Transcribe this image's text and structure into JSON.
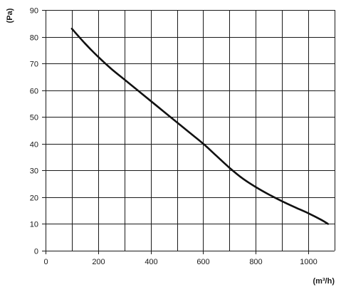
{
  "chart_data": {
    "type": "line",
    "title": "",
    "xlabel": "(m³/h)",
    "ylabel": "(Pa)",
    "xlim": [
      0,
      1100
    ],
    "ylim": [
      0,
      90
    ],
    "x_ticks": [
      0,
      200,
      400,
      600,
      800,
      1000
    ],
    "x_tick_labels": [
      "0",
      "200",
      "400",
      "600",
      "800",
      "1000"
    ],
    "x_grid_step": 100,
    "y_ticks": [
      0,
      10,
      20,
      30,
      40,
      50,
      60,
      70,
      80,
      90
    ],
    "y_tick_labels": [
      "0",
      "10",
      "20",
      "30",
      "40",
      "50",
      "60",
      "70",
      "80",
      "90"
    ],
    "grid": true,
    "legend": "none",
    "series": [
      {
        "color": "#111111",
        "x": [
          100,
          150,
          200,
          250,
          300,
          350,
          400,
          450,
          500,
          550,
          600,
          650,
          700,
          750,
          800,
          850,
          900,
          950,
          1000,
          1050,
          1075
        ],
        "y": [
          83,
          77.5,
          72.5,
          68,
          64,
          60,
          56,
          52,
          48,
          44,
          40,
          35.5,
          31,
          27,
          23.8,
          21,
          18.5,
          16.2,
          14,
          11.5,
          10
        ]
      }
    ]
  }
}
